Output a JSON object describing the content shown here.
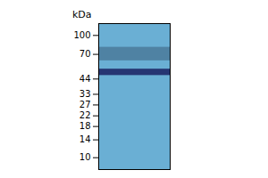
{
  "chart_data": {
    "type": "gel",
    "ylabel": "kDa",
    "log": "y",
    "ylim": [
      8,
      125
    ],
    "yticks": [
      100,
      70,
      44,
      33,
      27,
      22,
      18,
      14,
      10
    ],
    "grid": false,
    "tick_labels": "y",
    "lane_color": "#6aafd4",
    "bands": [
      {
        "low": 62,
        "high": 80,
        "color": "#4a7a9a"
      },
      {
        "low": 47,
        "high": 53,
        "color": "#1a2060"
      }
    ]
  }
}
